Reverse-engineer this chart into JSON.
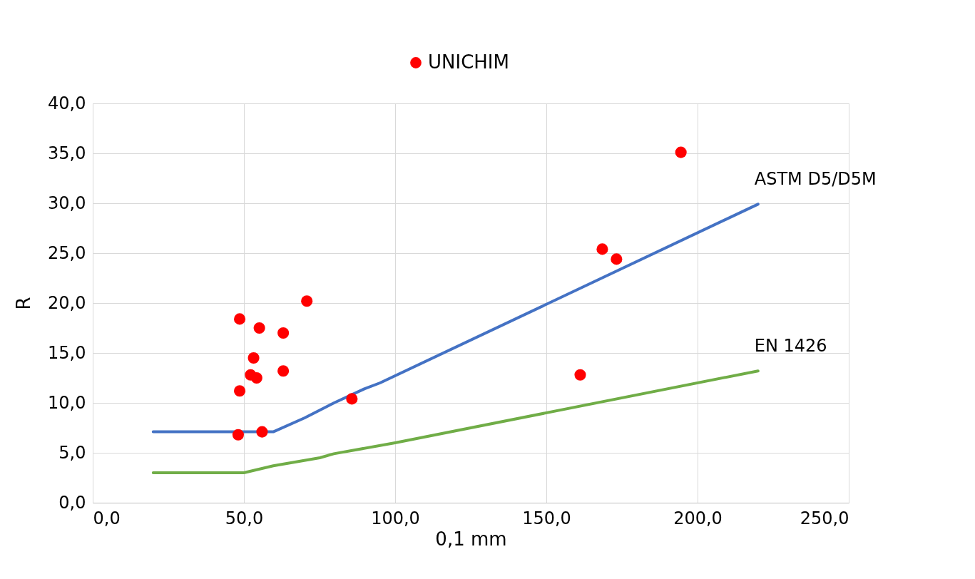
{
  "chart_data": {
    "type": "scatter",
    "xlabel": "0,1 mm",
    "ylabel": "R",
    "xlim": [
      0,
      250
    ],
    "ylim": [
      0,
      40
    ],
    "xticks": [
      {
        "value": 0,
        "label": "0,0"
      },
      {
        "value": 50,
        "label": "50,0"
      },
      {
        "value": 100,
        "label": "100,0"
      },
      {
        "value": 150,
        "label": "150,0"
      },
      {
        "value": 200,
        "label": "200,0"
      },
      {
        "value": 250,
        "label": "250,0"
      }
    ],
    "yticks": [
      {
        "value": 0,
        "label": "0,0"
      },
      {
        "value": 5,
        "label": "5,0"
      },
      {
        "value": 10,
        "label": "10,0"
      },
      {
        "value": 15,
        "label": "15,0"
      },
      {
        "value": 20,
        "label": "20,0"
      },
      {
        "value": 25,
        "label": "25,0"
      },
      {
        "value": 30,
        "label": "30,0"
      },
      {
        "value": 35,
        "label": "35,0"
      },
      {
        "value": 40,
        "label": "40,0"
      }
    ],
    "grid": true,
    "legend": "top",
    "series": [
      {
        "name": "UNICHIM",
        "marker": "circle",
        "color": "#ff0000",
        "x": [
          48.6,
          55.1,
          63.0,
          70.8,
          53.2,
          52.2,
          54.2,
          63.0,
          48.6,
          48.1,
          56.0,
          85.7,
          194.5,
          168.5,
          173.2,
          161.2
        ],
        "values": [
          18.4,
          17.5,
          17.0,
          20.2,
          14.5,
          12.8,
          12.5,
          13.2,
          11.2,
          6.8,
          7.1,
          10.4,
          35.1,
          25.4,
          24.4,
          12.8
        ]
      },
      {
        "name": "ASTM D5/D5M",
        "type": "line",
        "color": "#4472c4",
        "x": [
          20,
          59.7,
          70.1,
          79.8,
          89.8,
          95,
          220
        ],
        "values": [
          7.1,
          7.1,
          8.5,
          10.0,
          11.4,
          12.0,
          29.9
        ]
      },
      {
        "name": "EN 1426",
        "type": "line",
        "color": "#70ad47",
        "x": [
          20,
          50,
          59.7,
          75.1,
          79.7,
          100,
          220
        ],
        "values": [
          3.0,
          3.0,
          3.7,
          4.5,
          4.9,
          6.0,
          13.2
        ]
      }
    ]
  }
}
